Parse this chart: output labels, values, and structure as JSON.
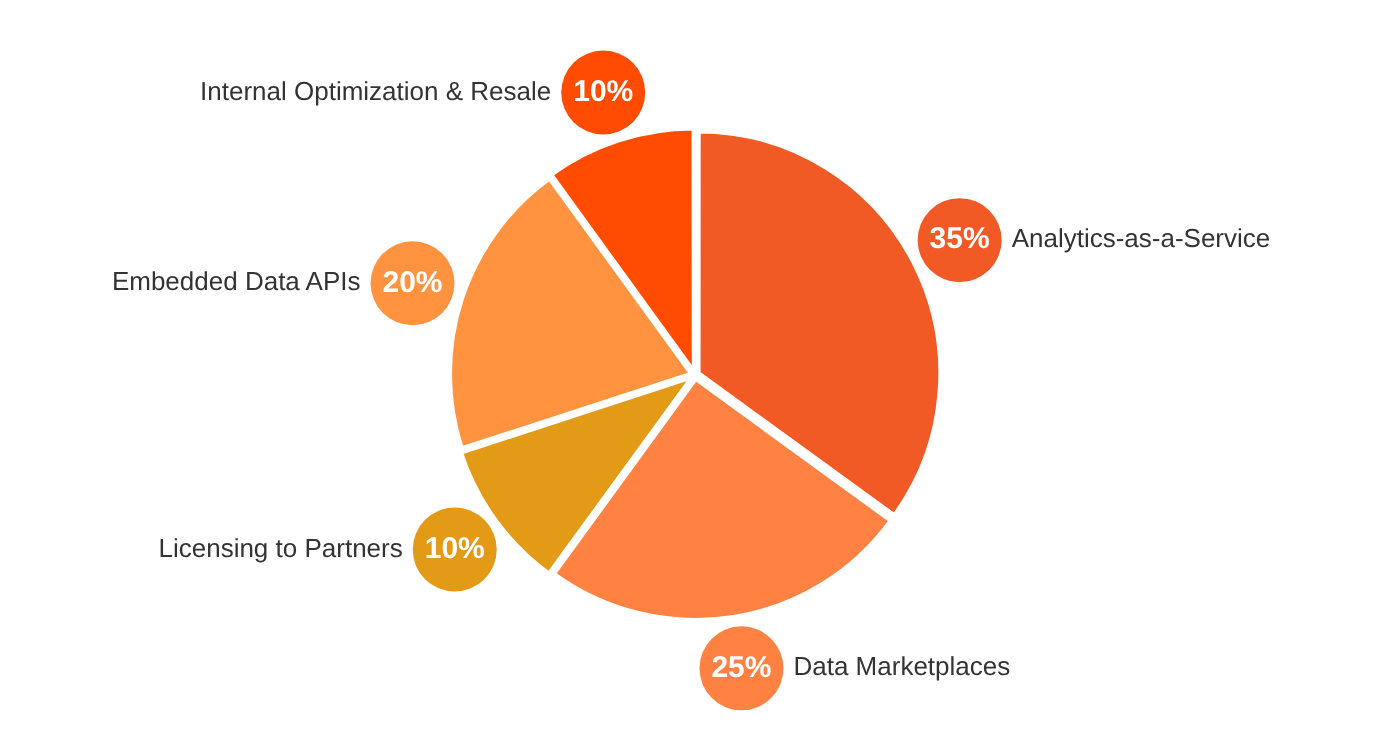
{
  "chart_data": {
    "type": "pie",
    "categories": [
      "Analytics-as-a-Service",
      "Data Marketplaces",
      "Licensing to Partners",
      "Embedded Data APIs",
      "Internal Optimization & Resale"
    ],
    "values": [
      35,
      25,
      10,
      20,
      10
    ],
    "colors": [
      "#f15a24",
      "#ff8243",
      "#e39b17",
      "#ff9340",
      "#ff4c00"
    ],
    "value_labels": [
      "35%",
      "25%",
      "10%",
      "20%",
      "10%"
    ],
    "legend": false
  }
}
